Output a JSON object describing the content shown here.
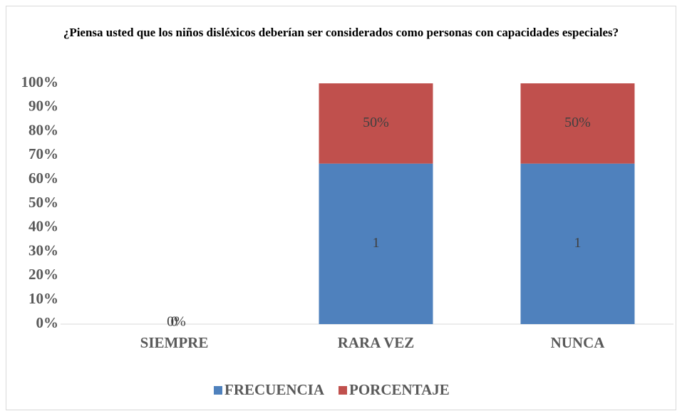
{
  "chart_data": {
    "type": "stacked_percent_bar",
    "title": "¿Piensa usted que los niños disléxicos deberían ser considerados como personas con capacidades especiales?",
    "categories": [
      "SIEMPRE",
      "RARA VEZ",
      "NUNCA"
    ],
    "series": [
      {
        "name": "FRECUENCIA",
        "color": "#4f81bd",
        "values": [
          0,
          1,
          1
        ]
      },
      {
        "name": "PORCENTAJE",
        "color": "#c0504d",
        "values": [
          0,
          0.5,
          0.5
        ],
        "value_labels": [
          "0%",
          "50%",
          "50%"
        ]
      }
    ],
    "ylim": [
      0,
      100
    ],
    "yticks": [
      {
        "value": 0,
        "label": "0%"
      },
      {
        "value": 10,
        "label": "10%"
      },
      {
        "value": 20,
        "label": "20%"
      },
      {
        "value": 30,
        "label": "30%"
      },
      {
        "value": 40,
        "label": "40%"
      },
      {
        "value": 50,
        "label": "50%"
      },
      {
        "value": 60,
        "label": "60%"
      },
      {
        "value": 70,
        "label": "70%"
      },
      {
        "value": 80,
        "label": "80%"
      },
      {
        "value": 90,
        "label": "90%"
      },
      {
        "value": 100,
        "label": "100%"
      }
    ],
    "legend": "bottom"
  }
}
